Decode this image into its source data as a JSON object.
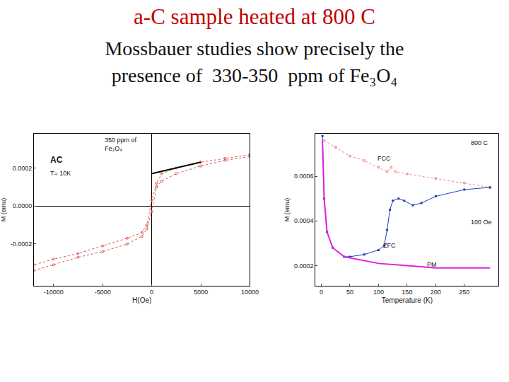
{
  "header": {
    "title": "a-C sample heated at 800 C",
    "subtitle": [
      "Mossbauer studies show precisely the",
      "presence of  330-350  ppm of Fe₃O₄"
    ]
  },
  "chart_data": [
    {
      "type": "line",
      "x_label": "H(Oe)",
      "y_label": "M (emu)",
      "annotations": [
        "350 ppm of\nFe₃O₄",
        "AC",
        "T= 10K"
      ],
      "xlim": [
        -12000,
        10000
      ],
      "xticks": [
        -10000,
        -5000,
        0,
        5000,
        10000
      ],
      "ylim": [
        -0.00042,
        0.00038
      ],
      "yticks": [
        -0.0002,
        {
          "value": 0,
          "label": "0.0000"
        },
        0.0002
      ],
      "grid": false,
      "series": [
        {
          "color": "#e05050",
          "marker": "circle-open",
          "line_style": "dotted",
          "x": [
            10000,
            7500,
            5000,
            2500,
            1000,
            500,
            0,
            -500,
            -1000,
            -2500,
            -5000,
            -7500,
            -10000,
            -12000
          ],
          "values": [
            0.00027,
            0.00025,
            0.00023,
            0.0002,
            0.00017,
            0.00012,
            3e-05,
            -0.0001,
            -0.00014,
            -0.00017,
            -0.00021,
            -0.00025,
            -0.00028,
            -0.00031
          ]
        },
        {
          "color": "#e05050",
          "marker": "circle-open",
          "line_style": "dotted",
          "x": [
            -12000,
            -10000,
            -7500,
            -5000,
            -2500,
            -1000,
            -500,
            0,
            500,
            1000,
            2500,
            5000,
            7500,
            10000
          ],
          "values": [
            -0.00034,
            -0.00031,
            -0.00027,
            -0.00024,
            -0.0002,
            -0.00016,
            -0.00012,
            -3e-05,
            0.0001,
            0.00013,
            0.00017,
            0.00021,
            0.00024,
            0.00026
          ]
        },
        {
          "color": "#000000",
          "line_style": "solid",
          "x": [
            0,
            5000
          ],
          "values": [
            0.00017,
            0.00023
          ]
        }
      ]
    },
    {
      "type": "line",
      "x_label": "Temperature (K)",
      "y_label": "M (emu)",
      "annotations": [
        "FCC",
        "800 C",
        "100 Oe",
        "ZFC",
        "PM"
      ],
      "xlim": [
        -10,
        310
      ],
      "xticks": [
        0,
        50,
        100,
        150,
        200,
        250
      ],
      "ylim": [
        0.00011,
        0.00079
      ],
      "yticks": [
        0.0002,
        0.0004,
        0.0006
      ],
      "grid": false,
      "series": [
        {
          "color": "#f08080",
          "marker": "circle-open",
          "line_style": "dotted",
          "x": [
            5,
            25,
            50,
            75,
            100,
            115,
            122,
            130,
            150,
            200,
            250,
            295
          ],
          "values": [
            0.00076,
            0.00073,
            0.00069,
            0.00067,
            0.00064,
            0.00062,
            0.00064,
            0.00062,
            0.00061,
            0.00059,
            0.00057,
            0.00055
          ]
        },
        {
          "color": "#1f3fbf",
          "marker": "square",
          "line_style": "solid",
          "x": [
            2,
            5,
            10,
            20,
            40,
            50,
            75,
            100,
            110,
            115,
            120,
            125,
            135,
            145,
            160,
            175,
            200,
            250,
            295
          ],
          "values": [
            0.00078,
            0.0005,
            0.00035,
            0.00028,
            0.00024,
            0.00024,
            0.00025,
            0.00027,
            0.00029,
            0.00036,
            0.00045,
            0.00049,
            0.0005,
            0.00049,
            0.00047,
            0.00048,
            0.00051,
            0.00054,
            0.00055
          ]
        },
        {
          "color": "#e020e0",
          "line_style": "solid",
          "x": [
            2,
            5,
            10,
            20,
            40,
            60,
            100,
            150,
            200,
            295
          ],
          "values": [
            0.00076,
            0.0005,
            0.00035,
            0.00028,
            0.00024,
            0.00023,
            0.00021,
            0.0002,
            0.00019,
            0.00019
          ]
        }
      ]
    }
  ]
}
